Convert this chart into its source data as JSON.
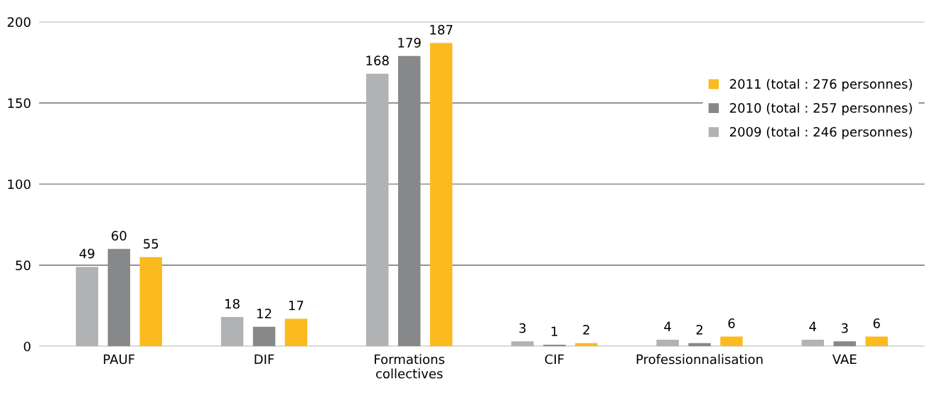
{
  "chart_data": {
    "type": "bar",
    "categories": [
      "PAUF",
      "DIF",
      "Formations collectives",
      "CIF",
      "Professionnalisation",
      "VAE"
    ],
    "series": [
      {
        "name": "2009 (total : 246 personnes)",
        "color": "#b1b2b4",
        "values": [
          49,
          18,
          168,
          3,
          4,
          4
        ]
      },
      {
        "name": "2010 (total : 257 personnes)",
        "color": "#87888a",
        "values": [
          60,
          12,
          179,
          1,
          2,
          3
        ]
      },
      {
        "name": "2011 (total : 276 personnes)",
        "color": "#fbba1e",
        "values": [
          55,
          17,
          187,
          2,
          6,
          6
        ]
      }
    ],
    "ylim": [
      0,
      200
    ],
    "yticks": [
      0,
      50,
      100,
      150,
      200
    ],
    "grid": "y",
    "legend": "top right",
    "data_labels": true
  }
}
